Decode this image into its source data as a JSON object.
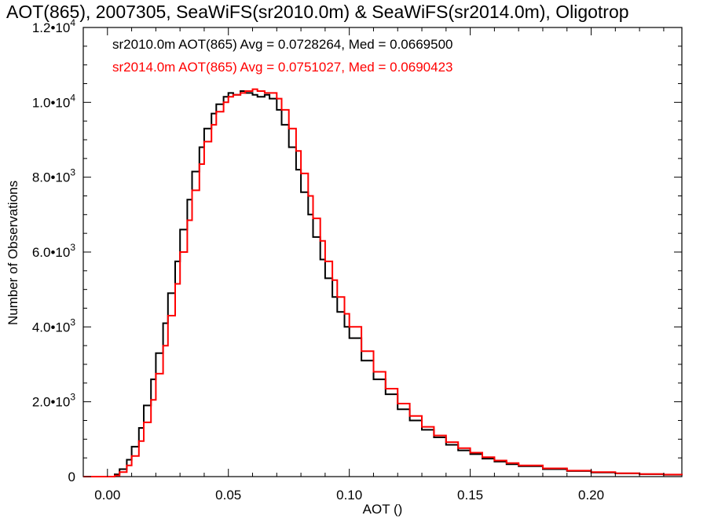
{
  "chart_data": {
    "type": "line",
    "step": true,
    "title": "AOT(865), 2007305, SeaWiFS(sr2010.0m) & SeaWiFS(sr2014.0m), Oligotrop",
    "xlabel": "AOT ()",
    "ylabel": "Number of Observations",
    "xlim": [
      -0.01,
      0.2375
    ],
    "ylim": [
      0,
      12000
    ],
    "x_ticks": [
      {
        "value": 0.0,
        "label": "0.00"
      },
      {
        "value": 0.05,
        "label": "0.05"
      },
      {
        "value": 0.1,
        "label": "0.10"
      },
      {
        "value": 0.15,
        "label": "0.15"
      },
      {
        "value": 0.2,
        "label": "0.20"
      }
    ],
    "y_ticks": [
      {
        "value": 0,
        "label": "0",
        "exp": ""
      },
      {
        "value": 2000,
        "label": "2.0•10",
        "exp": "3"
      },
      {
        "value": 4000,
        "label": "4.0•10",
        "exp": "3"
      },
      {
        "value": 6000,
        "label": "6.0•10",
        "exp": "3"
      },
      {
        "value": 8000,
        "label": "8.0•10",
        "exp": "3"
      },
      {
        "value": 10000,
        "label": "1.0•10",
        "exp": "4"
      },
      {
        "value": 12000,
        "label": "1.2•10",
        "exp": "4"
      }
    ],
    "legend_placement": "top-left",
    "annotations": [
      {
        "text": "sr2010.0m AOT(865) Avg = 0.0728264, Med = 0.0669500",
        "color": "#000000"
      },
      {
        "text": "sr2014.0m AOT(865) Avg = 0.0751027, Med = 0.0690423",
        "color": "#ff0000"
      }
    ],
    "series": [
      {
        "color": "#000000",
        "x": [
          -0.01,
          0.0,
          0.003,
          0.005,
          0.008,
          0.01,
          0.013,
          0.015,
          0.018,
          0.02,
          0.023,
          0.025,
          0.028,
          0.03,
          0.033,
          0.035,
          0.038,
          0.04,
          0.043,
          0.045,
          0.048,
          0.05,
          0.052,
          0.055,
          0.057,
          0.06,
          0.062,
          0.065,
          0.067,
          0.07,
          0.072,
          0.075,
          0.078,
          0.08,
          0.083,
          0.085,
          0.088,
          0.09,
          0.093,
          0.095,
          0.098,
          0.1,
          0.105,
          0.11,
          0.115,
          0.12,
          0.125,
          0.13,
          0.135,
          0.14,
          0.145,
          0.15,
          0.155,
          0.16,
          0.165,
          0.17,
          0.18,
          0.19,
          0.2,
          0.21,
          0.22,
          0.23,
          0.2375
        ],
        "y": [
          0,
          0,
          60,
          200,
          450,
          800,
          1300,
          1900,
          2600,
          3300,
          4100,
          4900,
          5750,
          6600,
          7400,
          8150,
          8800,
          9300,
          9700,
          9950,
          10150,
          10250,
          10200,
          10300,
          10250,
          10200,
          10150,
          10200,
          10100,
          9800,
          9400,
          8800,
          8200,
          7600,
          7000,
          6400,
          5800,
          5300,
          4800,
          4400,
          4000,
          3700,
          3100,
          2600,
          2200,
          1800,
          1500,
          1250,
          1050,
          850,
          700,
          600,
          480,
          400,
          330,
          280,
          200,
          150,
          110,
          85,
          65,
          50,
          40
        ]
      },
      {
        "color": "#ff0000",
        "x": [
          -0.01,
          0.0,
          0.003,
          0.005,
          0.008,
          0.01,
          0.013,
          0.015,
          0.018,
          0.02,
          0.023,
          0.025,
          0.028,
          0.03,
          0.033,
          0.035,
          0.038,
          0.04,
          0.043,
          0.045,
          0.048,
          0.05,
          0.052,
          0.055,
          0.057,
          0.06,
          0.062,
          0.065,
          0.067,
          0.07,
          0.072,
          0.075,
          0.078,
          0.08,
          0.083,
          0.085,
          0.088,
          0.09,
          0.093,
          0.095,
          0.098,
          0.1,
          0.105,
          0.11,
          0.115,
          0.12,
          0.125,
          0.13,
          0.135,
          0.14,
          0.145,
          0.15,
          0.155,
          0.16,
          0.165,
          0.17,
          0.18,
          0.19,
          0.2,
          0.21,
          0.22,
          0.23,
          0.2375
        ],
        "y": [
          0,
          0,
          30,
          120,
          300,
          550,
          950,
          1450,
          2050,
          2750,
          3500,
          4300,
          5150,
          6000,
          6850,
          7650,
          8350,
          8950,
          9400,
          9750,
          10000,
          10150,
          10200,
          10250,
          10300,
          10350,
          10300,
          10250,
          10250,
          10100,
          9800,
          9300,
          8700,
          8100,
          7500,
          6900,
          6300,
          5750,
          5250,
          4800,
          4350,
          4000,
          3350,
          2800,
          2350,
          1950,
          1620,
          1330,
          1100,
          920,
          760,
          640,
          520,
          430,
          360,
          300,
          220,
          160,
          120,
          90,
          70,
          55,
          45
        ]
      }
    ]
  }
}
